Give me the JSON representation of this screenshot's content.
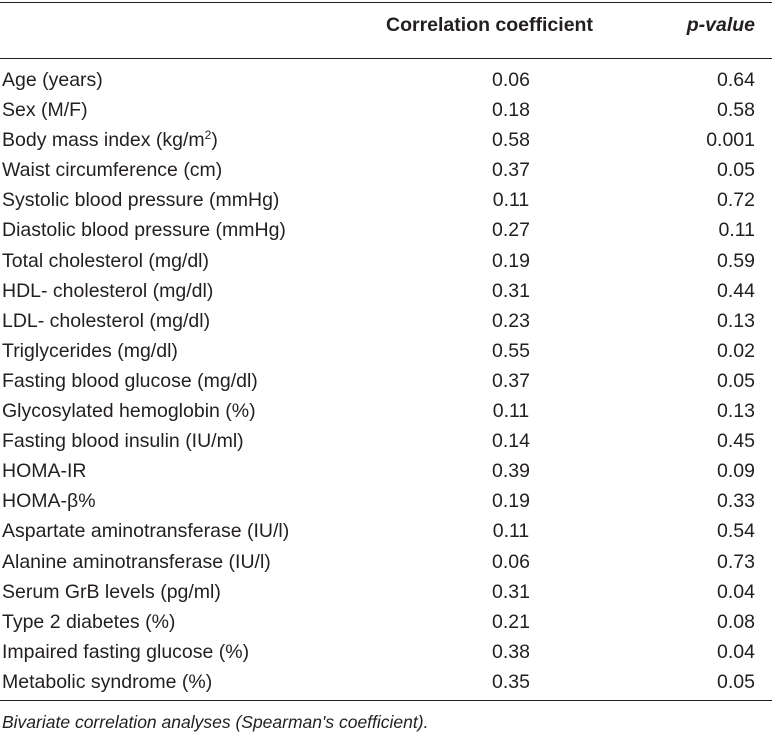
{
  "table": {
    "headers": {
      "variable": "",
      "coefficient": "Correlation coefficient",
      "p_value": "p-value"
    },
    "rows": [
      {
        "label": "Age (years)",
        "coefficient": "0.06",
        "p_value": "0.64"
      },
      {
        "label": "Sex (M/F)",
        "coefficient": "0.18",
        "p_value": "0.58"
      },
      {
        "label": "Body mass index (kg/m",
        "label_sup": "2",
        "label_suffix": ")",
        "coefficient": "0.58",
        "p_value": "0.001"
      },
      {
        "label": "Waist circumference (cm)",
        "coefficient": "0.37",
        "p_value": "0.05"
      },
      {
        "label": "Systolic blood pressure (mmHg)",
        "coefficient": "0.11",
        "p_value": "0.72"
      },
      {
        "label": "Diastolic blood pressure (mmHg)",
        "coefficient": "0.27",
        "p_value": "0.11"
      },
      {
        "label": "Total cholesterol (mg/dl)",
        "coefficient": "0.19",
        "p_value": "0.59"
      },
      {
        "label": "HDL- cholesterol (mg/dl)",
        "coefficient": "0.31",
        "p_value": "0.44"
      },
      {
        "label": "LDL- cholesterol (mg/dl)",
        "coefficient": "0.23",
        "p_value": "0.13"
      },
      {
        "label": "Triglycerides (mg/dl)",
        "coefficient": "0.55",
        "p_value": "0.02"
      },
      {
        "label": "Fasting blood glucose (mg/dl)",
        "coefficient": "0.37",
        "p_value": "0.05"
      },
      {
        "label": "Glycosylated hemoglobin (%)",
        "coefficient": "0.11",
        "p_value": "0.13"
      },
      {
        "label": "Fasting blood insulin (IU/ml)",
        "coefficient": "0.14",
        "p_value": "0.45"
      },
      {
        "label": "HOMA-IR",
        "coefficient": "0.39",
        "p_value": "0.09"
      },
      {
        "label": "HOMA-β%",
        "coefficient": "0.19",
        "p_value": "0.33"
      },
      {
        "label": "Aspartate aminotransferase (IU/l)",
        "coefficient": "0.11",
        "p_value": "0.54"
      },
      {
        "label": "Alanine aminotransferase (IU/l)",
        "coefficient": "0.06",
        "p_value": "0.73"
      },
      {
        "label": "Serum GrB levels (pg/ml)",
        "coefficient": "0.31",
        "p_value": "0.04"
      },
      {
        "label": "Type 2 diabetes (%)",
        "coefficient": "0.21",
        "p_value": "0.08"
      },
      {
        "label": "Impaired fasting glucose (%)",
        "coefficient": "0.38",
        "p_value": "0.04"
      },
      {
        "label": "Metabolic syndrome (%)",
        "coefficient": "0.35",
        "p_value": "0.05"
      }
    ]
  },
  "footnote": "Bivariate correlation analyses (Spearman's coefficient)."
}
